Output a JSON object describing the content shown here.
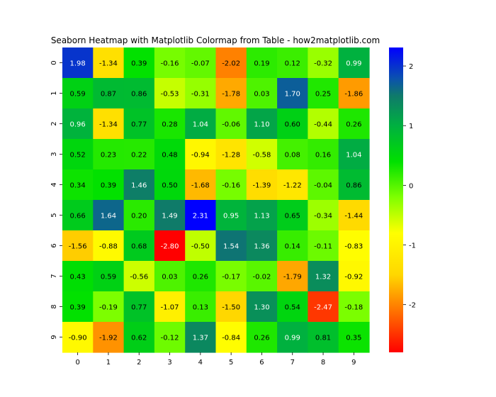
{
  "chart_data": {
    "type": "heatmap",
    "title": "Seaborn Heatmap with Matplotlib Colormap from Table - how2matplotlib.com",
    "xlabel": "",
    "ylabel": "",
    "x_ticks": [
      "0",
      "1",
      "2",
      "3",
      "4",
      "5",
      "6",
      "7",
      "8",
      "9"
    ],
    "y_ticks": [
      "0",
      "1",
      "2",
      "3",
      "4",
      "5",
      "6",
      "7",
      "8",
      "9"
    ],
    "values": [
      [
        1.98,
        -1.34,
        0.39,
        -0.16,
        -0.07,
        -2.02,
        0.19,
        0.12,
        -0.32,
        0.99
      ],
      [
        0.59,
        0.87,
        0.86,
        -0.53,
        -0.31,
        -1.78,
        0.03,
        1.7,
        0.25,
        -1.86
      ],
      [
        0.96,
        -1.34,
        0.77,
        0.28,
        1.04,
        -0.06,
        1.1,
        0.6,
        -0.44,
        0.26
      ],
      [
        0.52,
        0.23,
        0.22,
        0.48,
        -0.94,
        -1.28,
        -0.58,
        0.08,
        0.16,
        1.04
      ],
      [
        0.34,
        0.39,
        1.46,
        0.5,
        -1.68,
        -0.16,
        -1.39,
        -1.22,
        -0.04,
        0.86
      ],
      [
        0.66,
        1.64,
        0.2,
        1.49,
        2.31,
        0.95,
        1.13,
        0.65,
        -0.34,
        -1.44
      ],
      [
        -1.56,
        -0.88,
        0.68,
        -2.8,
        -0.5,
        1.54,
        1.36,
        0.14,
        -0.11,
        -0.83
      ],
      [
        0.43,
        0.59,
        -0.56,
        0.03,
        0.26,
        -0.17,
        -0.02,
        -1.79,
        1.32,
        -0.92
      ],
      [
        0.39,
        -0.19,
        0.77,
        -1.07,
        0.13,
        -1.5,
        1.3,
        0.54,
        -2.47,
        -0.18
      ],
      [
        -0.9,
        -1.92,
        0.62,
        -0.12,
        1.37,
        -0.84,
        0.26,
        0.99,
        0.81,
        0.35
      ]
    ],
    "labels": [
      [
        "1.98",
        "-1.34",
        "0.39",
        "-0.16",
        "-0.07",
        "-2.02",
        "0.19",
        "0.12",
        "-0.32",
        "0.99"
      ],
      [
        "0.59",
        "0.87",
        "0.86",
        "-0.53",
        "-0.31",
        "-1.78",
        "0.03",
        "1.70",
        "0.25",
        "-1.86"
      ],
      [
        "0.96",
        "-1.34",
        "0.77",
        "0.28",
        "1.04",
        "-0.06",
        "1.10",
        "0.60",
        "-0.44",
        "0.26"
      ],
      [
        "0.52",
        "0.23",
        "0.22",
        "0.48",
        "-0.94",
        "-1.28",
        "-0.58",
        "0.08",
        "0.16",
        "1.04"
      ],
      [
        "0.34",
        "0.39",
        "1.46",
        "0.50",
        "-1.68",
        "-0.16",
        "-1.39",
        "-1.22",
        "-0.04",
        "0.86"
      ],
      [
        "0.66",
        "1.64",
        "0.20",
        "1.49",
        "2.31",
        "0.95",
        "1.13",
        "0.65",
        "-0.34",
        "-1.44"
      ],
      [
        "-1.56",
        "-0.88",
        "0.68",
        "-2.80",
        "-0.50",
        "1.54",
        "1.36",
        "0.14",
        "-0.11",
        "-0.83"
      ],
      [
        "0.43",
        "0.59",
        "-0.56",
        "0.03",
        "0.26",
        "-0.17",
        "-0.02",
        "-1.79",
        "1.32",
        "-0.92"
      ],
      [
        "0.39",
        "-0.19",
        "0.77",
        "-1.07",
        "0.13",
        "-1.50",
        "1.30",
        "0.54",
        "-2.47",
        "-0.18"
      ],
      [
        "-0.90",
        "-1.92",
        "0.62",
        "-0.12",
        "1.37",
        "-0.84",
        "0.26",
        "0.99",
        "0.81",
        "0.35"
      ]
    ],
    "vmin": -2.8,
    "vmax": 2.31,
    "colormap": {
      "stops": [
        {
          "value": -2.8,
          "color": "#ff0000"
        },
        {
          "value": -1.5,
          "color": "#ffd700"
        },
        {
          "value": -0.8,
          "color": "#ffff00"
        },
        {
          "value": -0.2,
          "color": "#7fff00"
        },
        {
          "value": 0.4,
          "color": "#00e000"
        },
        {
          "value": 1.0,
          "color": "#00b040"
        },
        {
          "value": 1.5,
          "color": "#0f7a6a"
        },
        {
          "value": 1.8,
          "color": "#0b50b0"
        },
        {
          "value": 2.31,
          "color": "#0000ff"
        }
      ]
    },
    "colorbar": {
      "ticks": [
        2,
        1,
        0,
        -1,
        -2
      ],
      "tick_labels": [
        "2",
        "1",
        "0",
        "-1",
        "-2"
      ]
    },
    "grid": false,
    "legend": "colorbar-right"
  }
}
